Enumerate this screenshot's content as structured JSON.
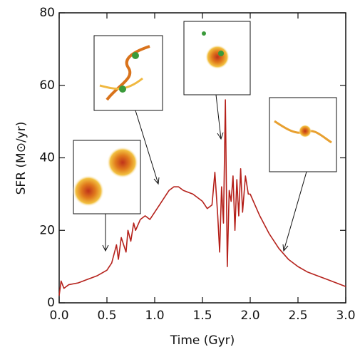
{
  "chart_data": {
    "type": "line",
    "xlabel": "Time (Gyr)",
    "ylabel": "SFR (M⊙/yr)",
    "x": [
      0.0,
      0.02,
      0.05,
      0.1,
      0.2,
      0.3,
      0.4,
      0.5,
      0.55,
      0.6,
      0.62,
      0.65,
      0.7,
      0.72,
      0.75,
      0.78,
      0.8,
      0.85,
      0.9,
      0.95,
      1.0,
      1.05,
      1.1,
      1.15,
      1.2,
      1.25,
      1.3,
      1.4,
      1.5,
      1.55,
      1.6,
      1.63,
      1.66,
      1.68,
      1.7,
      1.72,
      1.74,
      1.76,
      1.78,
      1.8,
      1.82,
      1.84,
      1.86,
      1.88,
      1.9,
      1.92,
      1.95,
      1.98,
      2.0,
      2.05,
      2.1,
      2.2,
      2.3,
      2.4,
      2.5,
      2.6,
      2.7,
      2.8,
      2.9,
      3.0
    ],
    "values": [
      2,
      6,
      4,
      5,
      5.5,
      6.5,
      7.5,
      9,
      11,
      16,
      12,
      18,
      14,
      20,
      17,
      22,
      20,
      23,
      24,
      23,
      25,
      27,
      29,
      31,
      32,
      32,
      31,
      30,
      28,
      26,
      27,
      36,
      24,
      14,
      32,
      22,
      56,
      10,
      31,
      28,
      35,
      20,
      34,
      24,
      37,
      25,
      35,
      30,
      30,
      27,
      24,
      19,
      15,
      12,
      10,
      8.5,
      7.5,
      6.5,
      5.5,
      4.5
    ],
    "color": "#b5211b",
    "xlim": [
      0,
      3
    ],
    "ylim": [
      0,
      80
    ],
    "xticks": [
      {
        "value": 0,
        "label": "0.0"
      },
      {
        "value": 0.5,
        "label": "0.5"
      },
      {
        "value": 1,
        "label": "1.0"
      },
      {
        "value": 1.5,
        "label": "1.5"
      },
      {
        "value": 2,
        "label": "2.0"
      },
      {
        "value": 2.5,
        "label": "2.5"
      },
      {
        "value": 3,
        "label": "3.0"
      }
    ],
    "yticks": [
      0,
      20,
      40,
      60,
      80
    ]
  }
}
